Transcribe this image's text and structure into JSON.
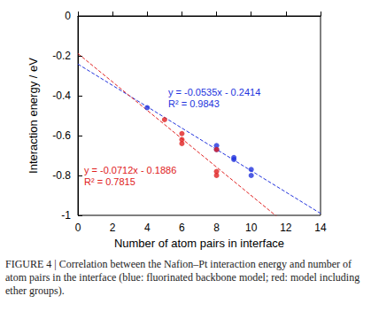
{
  "chart_data": {
    "type": "scatter",
    "xlabel": "Number of atom pairs in interface",
    "ylabel": "Interaction energy / eV",
    "xlim": [
      0,
      14
    ],
    "xticks": [
      0,
      2,
      4,
      6,
      8,
      10,
      12,
      14
    ],
    "ylim": [
      -1,
      0
    ],
    "yticks": [
      -1,
      -0.8,
      -0.6,
      -0.4,
      -0.2,
      0
    ],
    "grid": false,
    "marker": "circle",
    "series": [
      {
        "name": "fluorinated backbone model",
        "color": "#2233dd",
        "x": [
          4,
          8,
          8,
          9,
          9,
          10,
          10
        ],
        "values": [
          -0.46,
          -0.65,
          -0.67,
          -0.71,
          -0.72,
          -0.77,
          -0.8
        ],
        "fit": {
          "slope": -0.0535,
          "intercept": -0.2414,
          "line_style": "dashed",
          "equation": "y = -0.0535x - 0.2414",
          "r2": "R² = 0.9843"
        }
      },
      {
        "name": "model including ether groups",
        "color": "#e02020",
        "x": [
          5,
          6,
          6,
          6,
          8,
          8,
          8
        ],
        "values": [
          -0.52,
          -0.59,
          -0.62,
          -0.64,
          -0.67,
          -0.78,
          -0.8
        ],
        "fit": {
          "slope": -0.0712,
          "intercept": -0.1886,
          "line_style": "dashed",
          "equation": "y = -0.0712x - 0.1886",
          "r2": "R² = 0.7815"
        }
      }
    ],
    "caption": "FIGURE 4 | Correlation between the Nafion–Pt interaction energy and number of atom pairs in the interface (blue: fluorinated backbone model; red: model including ether groups)."
  }
}
